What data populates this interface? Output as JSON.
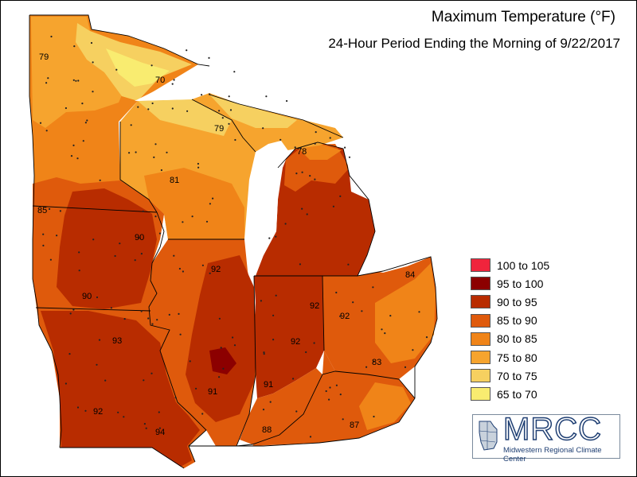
{
  "header": {
    "title": "Maximum Temperature (°F)",
    "subtitle": "24-Hour Period Ending the Morning of 9/22/2017"
  },
  "legend": [
    {
      "label": "100 to 105",
      "color": "#f0243c"
    },
    {
      "label": "95 to 100",
      "color": "#8c0000"
    },
    {
      "label": "90 to 95",
      "color": "#b82c00"
    },
    {
      "label": "85 to 90",
      "color": "#df5a0c"
    },
    {
      "label": "80 to 85",
      "color": "#f08418"
    },
    {
      "label": "75 to 80",
      "color": "#f6a42e"
    },
    {
      "label": "70 to 75",
      "color": "#f6d060"
    },
    {
      "label": "65 to 70",
      "color": "#f9ec70"
    }
  ],
  "value_labels": [
    "79",
    "70",
    "79",
    "78",
    "81",
    "85",
    "90",
    "92",
    "84",
    "90",
    "92",
    "92",
    "93",
    "92",
    "83",
    "91",
    "91",
    "92",
    "94",
    "88",
    "87"
  ],
  "logo": {
    "wordmark": "MRCC",
    "subtitle": "Midwestern Regional Climate Center"
  }
}
